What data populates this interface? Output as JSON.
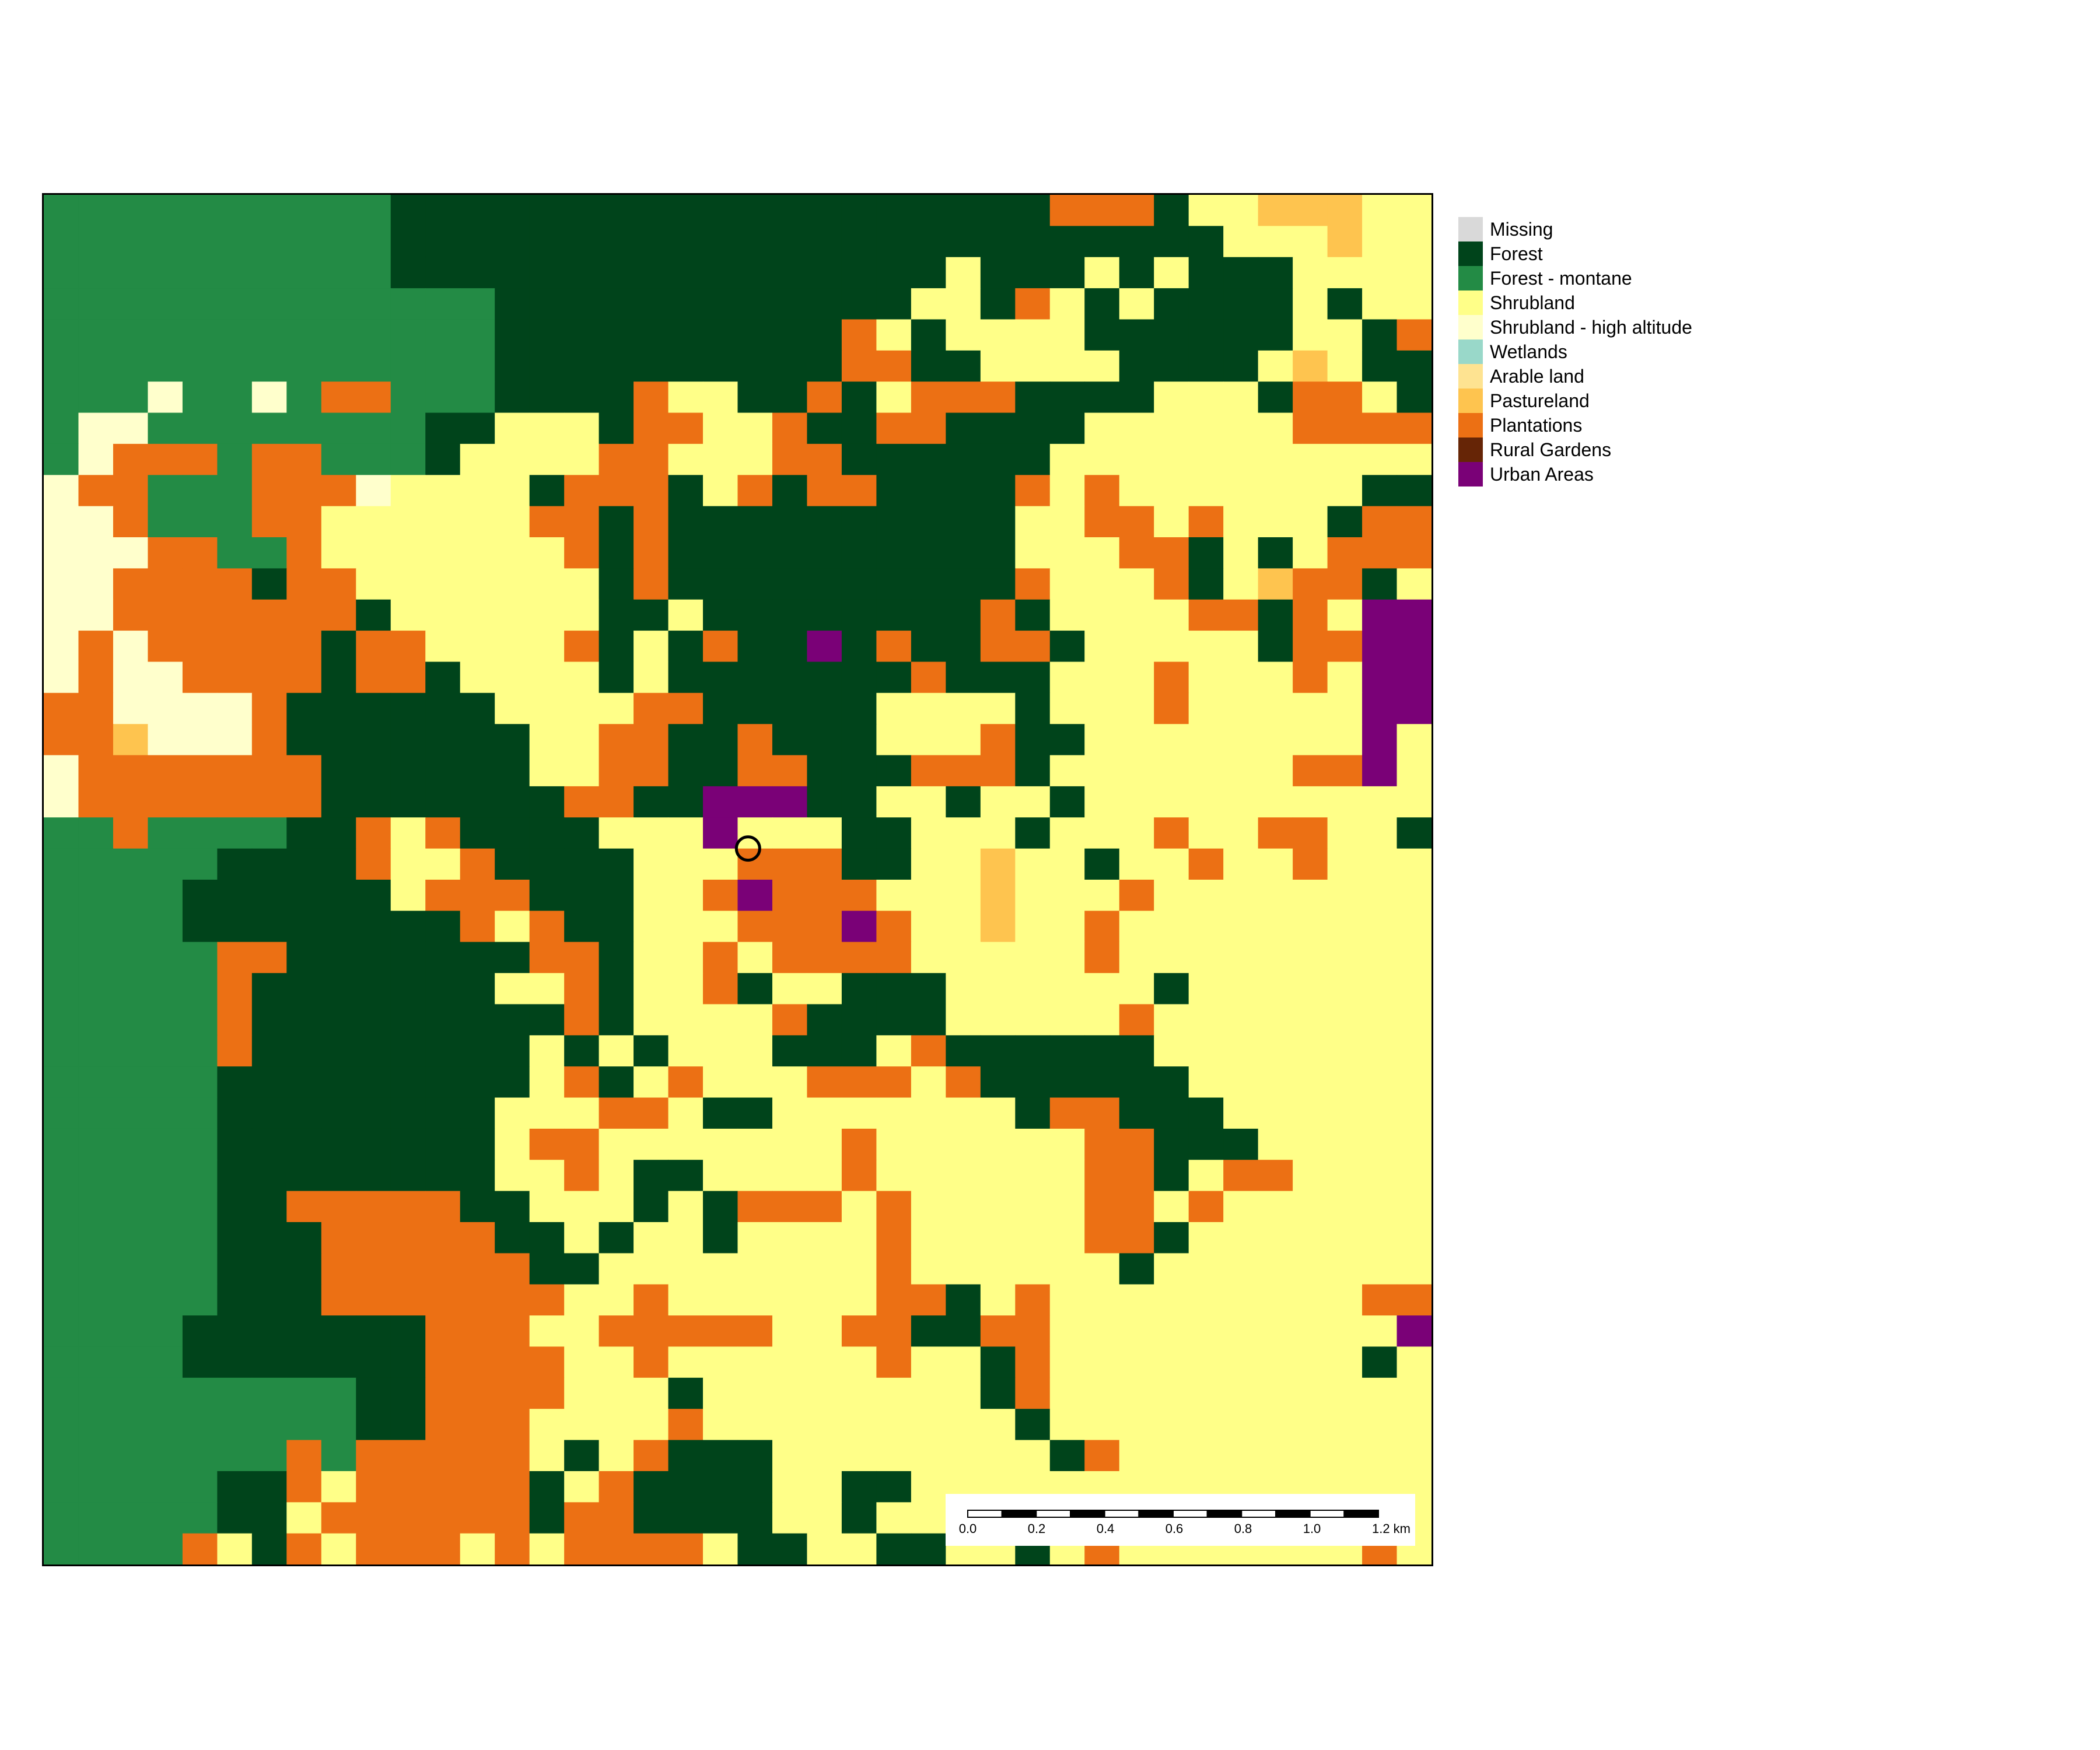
{
  "legend": {
    "items": [
      {
        "label": "Missing",
        "color": "#d9d9d9"
      },
      {
        "label": "Forest",
        "color": "#00441b"
      },
      {
        "label": "Forest - montane",
        "color": "#238b45"
      },
      {
        "label": "Shrubland",
        "color": "#ffff88"
      },
      {
        "label": "Shrubland - high altitude",
        "color": "#ffffcc"
      },
      {
        "label": "Wetlands",
        "color": "#99d8c9"
      },
      {
        "label": "Arable land",
        "color": "#fee391"
      },
      {
        "label": "Pastureland",
        "color": "#fec44f"
      },
      {
        "label": "Plantations",
        "color": "#ec7014"
      },
      {
        "label": "Rural Gardens",
        "color": "#662506"
      },
      {
        "label": "Urban Areas",
        "color": "#7a0177"
      }
    ]
  },
  "map": {
    "grid_rows": [
      "MMMMMMMMMMFFFFFFFFFFFFFFFFFFFPPPFSSAAASS",
      "MMMMMMMMMMFFFFFFFFFFFFFFFFFFFFFFFFSSSASS",
      "MMMMMMMMMMFFFFFFFFFFFFFFFFSFFFSFSFFFSSSS",
      "MMMMMMMMMMMMMFFFFFFFFFFFFSSFPSFSFFFFSFSS",
      "MMMMMMMMMMMMMFFFFFFFFFFPSFSSSSFFFFFFSSFP",
      "MMMMMMMMMMMMMFFFFFFFFFFPPFFSSSSFFFFSASFF",
      "MMMHMMHMPPMMMFFFFPSSFFPFSPPPFFFFSSSFPPSF",
      "MHHMMMMMMMMFFSSSFPPSSPFFPPFFFFSSSSSSPPPP",
      "MHPPPMPPMMMFSSSSPPSSSPPFFFFFFSSSSSSSSSSS",
      "HPPMMMPPPHSSSSFPPPFSPFPPFFFFPSPSSSSSSSFF",
      "HHPMMMPPSSSSSSPPFPFFFFFFFFFFSSPPSPSSSFPP",
      "HHHPPMMPSSSSSSSPFPFFFFFFFFFFSSSPPFSFSPPP",
      "HHPPPPFPPSSSSSSSFPFFFFFFFFFFPSSSPFSAPPFS",
      "HHPPPPPPPFSSSSSSFFSFFFFFFFFPFSSSSPPFPSUU",
      "HPHPPPPPFPPSSSSPFSFPFFUFPFFPPFSSSSSFPPUU",
      "HPHHPPPPFPPFSSSSFSFFFFFFFPFFFSSSPSSSPSUU",
      "PPHHHHPFFFFFFSSSSPPFFFFFSSSSFSSSPSSSSSUU",
      "PPAHHHPFFFFFFFSSPPFFPFFFSSSPFFSSSSSSSSUS",
      "HPPPPPPPFFFFFFSSPPFFPPFFFPPPFSSSSSSSPPUS",
      "HPPPPPPPFFFFFFFPPFFUUUFFSSFSSFSSSSSSSSSS",
      "MMPMMMMFFPSPFFFFSSSUSSSFFSSSFSSSPSSPPSSF",
      "MMMMMFFFFPSSPFFFFSSSPPPFFSSASSFSSPSSPSSS",
      "MMMMFFFFFFSPPPFFFSSPUPPPSSSASSSPSSSSSSSS",
      "MMMMFFFFFFFFPSPFFSSSPPPUPSSASSPSSSSSSSSS",
      "MMMMMPPFFFFFFFPPFSSPSPPPPSSSSSPSSSSSSSSS",
      "MMMMMPFFFFFFFSSPFSSPFSSFFFSSSSSSFSSSSSSS",
      "MMMMMPFFFFFFFFFPFSSSSPFFFFSSSSSPSSSSSSSS",
      "MMMMMPFFFFFFFFSFSFSSSFFFSPFFFFFFSSSSSSSS",
      "MMMMMFFFFFFFFFSPFSPSSSPPPSPFFFFFFSSSSSSS",
      "MMMMMFFFFFFFFSSSPPSFFSSSSSSSFPPFFFSSSSSS",
      "MMMMMFFFFFFFFSPPSSSSSSSPSSSSSSPPFFFSSSSS",
      "MMMMMFFFFFFFFSSPSFFSSSSPSSSSSSPPFSPPSSSS",
      "MMMMMFFPPPPPFFSSSFSFPPPSPSSSSSPPSPSSSSSS",
      "MMMMMFFFPPPPPFFSFSSFSSSSPSSSSSPPFSSSSSSS",
      "MMMMMFFFPPPPPPFFSSSSSSSSPSSSSSSFSSSSSSSS",
      "MMMMMFFFPPPPPPPSSPSSSSSSPPFSPSSSSSSSSSPP",
      "MMMMFFFFFFFPPPSSPPPPPSSPPFFPPSSSSSSSSSSU",
      "MMMMFFFFFFFPPPPSSPSSSSSSPSSFPSSSSSSSSSFS",
      "MMMMMMMMMFFPPPPSSSFSSSSSSSSFPSSSSSSSSSSS",
      "MMMMMMMMMFFPPPSSSSPSSSSSSSSSFSSSSSSSSSSS",
      "MMMMMMMPMPPPPPSFSPFFFSSSSSSSSFPSSSSSSSSS",
      "MMMMMFFPSPPPPPFSPFFFFSSFFSSSSSSSSSSSSSSS",
      "MMMMMFFSPPPPPPFPPFFFFSSFSSSSSSSSSSSSSSSS",
      "MMMMPSFPSPPPSPSPPPPSFFSSFFSSFSPSSSSSSSPS"
    ],
    "marker": {
      "col": 20.3,
      "row": 21.0
    }
  },
  "scalebar": {
    "tick_labels": [
      "0.0",
      "0.2",
      "0.4",
      "0.6",
      "0.8",
      "1.0",
      "1.2 km"
    ]
  }
}
